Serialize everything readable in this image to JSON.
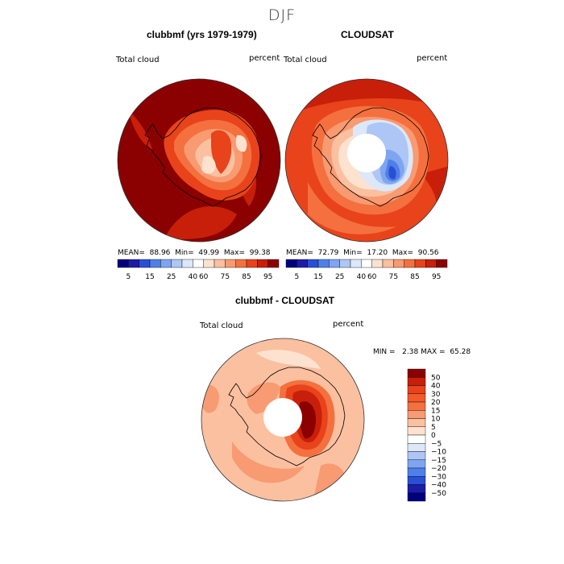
{
  "main_title": "DJF",
  "panels": [
    {
      "title": "clubbmf (yrs 1979-1979)",
      "field_label": "Total cloud",
      "unit_label": "percent",
      "mean_label": "MEAN=",
      "mean_value": "88.96",
      "min_label": "Min=",
      "min_value": "49.99",
      "max_label": "Max=",
      "max_value": "99.38",
      "has_pole_hole": false
    },
    {
      "title": "CLOUDSAT",
      "field_label": "Total cloud",
      "unit_label": "percent",
      "mean_label": "MEAN=",
      "mean_value": "72.79",
      "min_label": "Min=",
      "min_value": "17.20",
      "max_label": "Max=",
      "max_value": "90.56",
      "has_pole_hole": true
    },
    {
      "title": "clubbmf - CLOUDSAT",
      "field_label": "Total cloud",
      "unit_label": "percent",
      "min_label": "MIN =",
      "min_value": "2.38",
      "max_label": "MAX =",
      "max_value": "65.28",
      "has_pole_hole": true
    }
  ],
  "colorbar_total": {
    "tick_labels": [
      "5",
      "15",
      "25",
      "40",
      "60",
      "75",
      "85",
      "95"
    ],
    "colors": [
      "#00007f",
      "#1c1ca8",
      "#2a4fd6",
      "#4f7fe8",
      "#7fa5f0",
      "#aec6f5",
      "#dce8fa",
      "#ffffff",
      "#fde2d0",
      "#fbc0a0",
      "#f89a72",
      "#f4703f",
      "#e8431b",
      "#c81f0a",
      "#8b0000"
    ]
  },
  "colorbar_diff": {
    "tick_labels": [
      "50",
      "40",
      "30",
      "20",
      "15",
      "10",
      "5",
      "0",
      "−5",
      "−10",
      "−15",
      "−20",
      "−30",
      "−40",
      "−50"
    ],
    "colors": [
      "#8b0000",
      "#c81f0a",
      "#e8431b",
      "#f25a2a",
      "#f4703f",
      "#f89a72",
      "#fbc0a0",
      "#fde2d0",
      "#ffffff",
      "#dce8fa",
      "#aec6f5",
      "#7fa5f0",
      "#4f7fe8",
      "#2a4fd6",
      "#1c1ca8",
      "#00007f"
    ]
  }
}
